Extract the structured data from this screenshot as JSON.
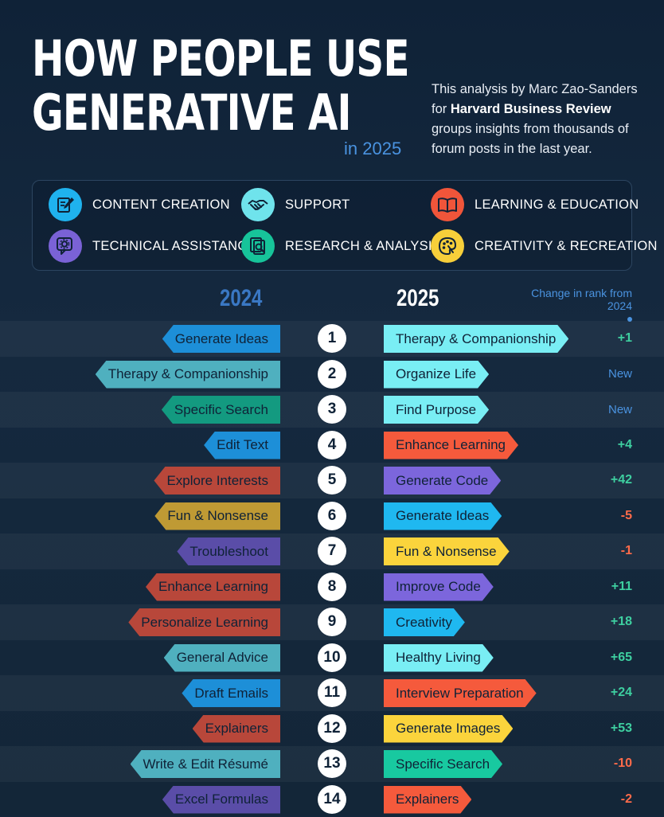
{
  "header": {
    "title_line1": "HOW PEOPLE USE",
    "title_line2": "GENERATIVE AI",
    "title_year": "in 2025",
    "intro_part1": "This analysis by Marc Zao-Sanders for ",
    "intro_bold": "Harvard Business Review",
    "intro_part2": " groups insights from thousands of forum posts in the last year."
  },
  "legend": [
    {
      "key": "content",
      "label": "CONTENT CREATION",
      "color": "#1fb2ee",
      "icon": "pencil-note-icon"
    },
    {
      "key": "support",
      "label": "SUPPORT",
      "color": "#6fe3ec",
      "icon": "handshake-icon"
    },
    {
      "key": "learning",
      "label": "LEARNING & EDUCATION",
      "color": "#f0553a",
      "icon": "open-book-icon"
    },
    {
      "key": "technical",
      "label": "TECHNICAL ASSISTANCE",
      "color": "#7a62d6",
      "icon": "gear-chat-icon"
    },
    {
      "key": "research",
      "label": "RESEARCH & ANALYSIS",
      "color": "#17c49a",
      "icon": "magnifier-document-icon"
    },
    {
      "key": "creativity",
      "label": "CREATIVITY & RECREATION",
      "color": "#f7cf3a",
      "icon": "palette-icon"
    }
  ],
  "chart_data": {
    "type": "table",
    "column_left": "2024",
    "column_right": "2025",
    "column_change": "Change in rank from 2024",
    "rows": [
      {
        "rank": 1,
        "use_2024": "Generate Ideas",
        "cat_2024": "content",
        "use_2025": "Therapy & Companionship",
        "cat_2025": "support",
        "change": "+1"
      },
      {
        "rank": 2,
        "use_2024": "Therapy & Companionship",
        "cat_2024": "support",
        "use_2025": "Organize Life",
        "cat_2025": "support",
        "change": "New"
      },
      {
        "rank": 3,
        "use_2024": "Specific Search",
        "cat_2024": "research",
        "use_2025": "Find Purpose",
        "cat_2025": "support",
        "change": "New"
      },
      {
        "rank": 4,
        "use_2024": "Edit Text",
        "cat_2024": "content",
        "use_2025": "Enhance Learning",
        "cat_2025": "learning",
        "change": "+4"
      },
      {
        "rank": 5,
        "use_2024": "Explore Interests",
        "cat_2024": "learning",
        "use_2025": "Generate Code",
        "cat_2025": "technical",
        "change": "+42"
      },
      {
        "rank": 6,
        "use_2024": "Fun & Nonsense",
        "cat_2024": "creativity",
        "use_2025": "Generate Ideas",
        "cat_2025": "content",
        "change": "-5"
      },
      {
        "rank": 7,
        "use_2024": "Troubleshoot",
        "cat_2024": "technical",
        "use_2025": "Fun & Nonsense",
        "cat_2025": "creativity",
        "change": "-1"
      },
      {
        "rank": 8,
        "use_2024": "Enhance Learning",
        "cat_2024": "learning",
        "use_2025": "Improve Code",
        "cat_2025": "technical",
        "change": "+11"
      },
      {
        "rank": 9,
        "use_2024": "Personalize Learning",
        "cat_2024": "learning",
        "use_2025": "Creativity",
        "cat_2025": "content",
        "change": "+18"
      },
      {
        "rank": 10,
        "use_2024": "General Advice",
        "cat_2024": "support",
        "use_2025": "Healthy Living",
        "cat_2025": "support",
        "change": "+65"
      },
      {
        "rank": 11,
        "use_2024": "Draft Emails",
        "cat_2024": "content",
        "use_2025": "Interview Preparation",
        "cat_2025": "learning",
        "change": "+24"
      },
      {
        "rank": 12,
        "use_2024": "Explainers",
        "cat_2024": "learning",
        "use_2025": "Generate Images",
        "cat_2025": "creativity",
        "change": "+53"
      },
      {
        "rank": 13,
        "use_2024": "Write & Edit Résumé",
        "cat_2024": "support",
        "use_2025": "Specific Search",
        "cat_2025": "research",
        "change": "-10"
      },
      {
        "rank": 14,
        "use_2024": "Excel Formulas",
        "cat_2024": "technical",
        "use_2025": "Explainers",
        "cat_2025": "learning",
        "change": "-2"
      }
    ]
  },
  "colors_2024": {
    "content": "#1d8fd8",
    "support": "#4fb0bf",
    "learning": "#b8473a",
    "technical": "#5a4da8",
    "research": "#139a80",
    "creativity": "#bf9a34"
  },
  "colors_2025": {
    "content": "#1fb8f0",
    "support": "#79eef4",
    "learning": "#f55a3c",
    "technical": "#7c66dc",
    "research": "#18c9a0",
    "creativity": "#fbd43c"
  },
  "text_colors": {
    "dark": "#0f2237",
    "left": "#0f2237"
  }
}
